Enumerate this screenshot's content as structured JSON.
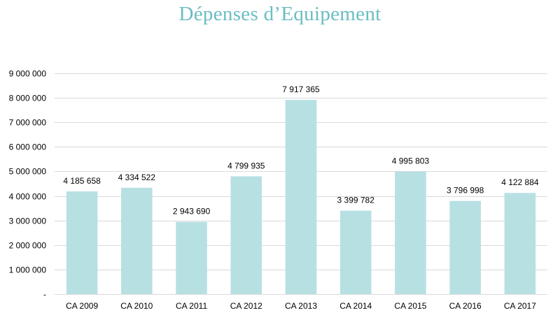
{
  "chart_data": {
    "type": "bar",
    "title": "Dépenses d’Equipement",
    "categories": [
      "CA 2009",
      "CA 2010",
      "CA 2011",
      "CA 2012",
      "CA 2013",
      "CA 2014",
      "CA 2015",
      "CA 2016",
      "CA 2017"
    ],
    "values": [
      4185658,
      4334522,
      2943690,
      4799935,
      7917365,
      3399782,
      4995803,
      3796998,
      4122884
    ],
    "value_labels": [
      "4 185 658",
      "4 334 522",
      "2 943 690",
      "4 799 935",
      "7 917 365",
      "3 399 782",
      "4 995 803",
      "3 796 998",
      "4 122 884"
    ],
    "y_ticks": [
      0,
      1000000,
      2000000,
      3000000,
      4000000,
      5000000,
      6000000,
      7000000,
      8000000,
      9000000
    ],
    "y_tick_labels": [
      "-",
      "1 000 000",
      "2 000 000",
      "3 000 000",
      "4 000 000",
      "5 000 000",
      "6 000 000",
      "7 000 000",
      "8 000 000",
      "9 000 000"
    ],
    "ylim": [
      0,
      9000000
    ],
    "grid": true,
    "legend": "none",
    "bar_color": "#b7e0e3",
    "title_color": "#6bbdc3",
    "grid_color": "#d9d9d9"
  }
}
